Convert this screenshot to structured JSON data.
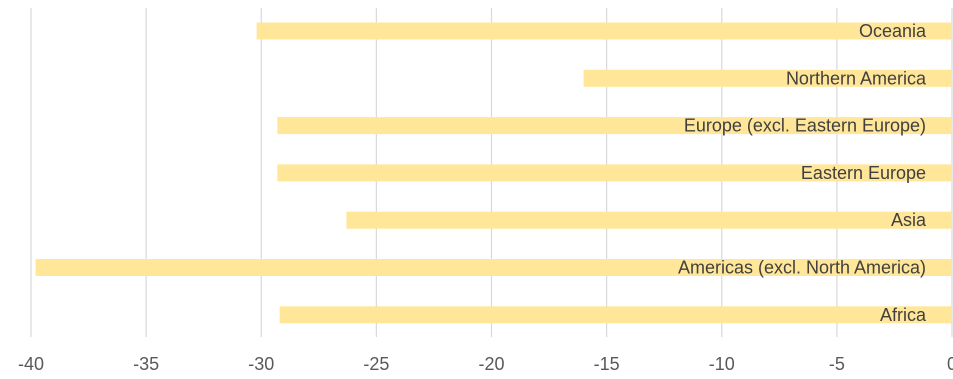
{
  "chart_data": {
    "type": "bar",
    "orientation": "horizontal",
    "title": "",
    "xlabel": "",
    "ylabel": "",
    "categories": [
      "Oceania",
      "Northern America",
      "Europe (excl. Eastern Europe)",
      "Eastern Europe",
      "Asia",
      "Americas (excl. North America)",
      "Africa"
    ],
    "values": [
      -30.2,
      -16.0,
      -29.3,
      -29.3,
      -26.3,
      -39.8,
      -29.2
    ],
    "xlim": [
      -40,
      0
    ],
    "xticks": [
      -40,
      -35,
      -30,
      -25,
      -20,
      -15,
      -10,
      -5,
      0
    ],
    "xtick_labels": [
      "-40",
      "-35",
      "-30",
      "-25",
      "-20",
      "-15",
      "-10",
      "-5",
      "0"
    ],
    "grid": "vertical",
    "legend": "none",
    "bar_color": "#ffe699",
    "label_position": "inside-bar-end"
  }
}
